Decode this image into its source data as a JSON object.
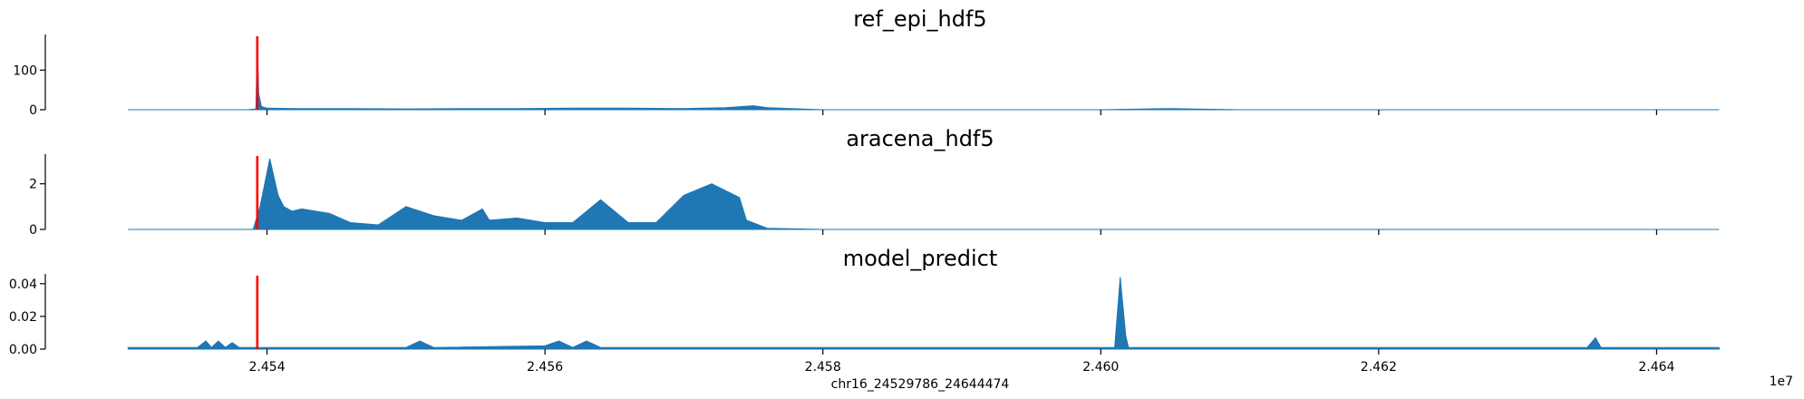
{
  "chart_data": [
    {
      "type": "area",
      "title": "ref_epi_hdf5",
      "color": "#1f77b4",
      "marker_color": "#ff0000",
      "marker_x": 2.45393,
      "xlim": [
        2.4529786,
        2.4644474
      ],
      "ylim": [
        0,
        190
      ],
      "yticks": [
        0,
        100
      ],
      "ytick_labels": [
        "0",
        "100"
      ],
      "x_ticks_shown": false,
      "x": [
        2.453,
        2.45386,
        2.45392,
        2.45393,
        2.45394,
        2.45396,
        2.454,
        2.4542,
        2.4546,
        2.455,
        2.4554,
        2.4558,
        2.4562,
        2.4566,
        2.457,
        2.4573,
        2.4575,
        2.4576,
        2.458,
        2.46,
        2.4605,
        2.461,
        2.462,
        2.46445
      ],
      "values": [
        0,
        0,
        2,
        178,
        40,
        8,
        4,
        3,
        3,
        2,
        3,
        3,
        4,
        4,
        3,
        5,
        10,
        5,
        0,
        0,
        3,
        0,
        0,
        0
      ]
    },
    {
      "type": "area",
      "title": "aracena_hdf5",
      "color": "#1f77b4",
      "marker_color": "#ff0000",
      "marker_x": 2.45393,
      "xlim": [
        2.4529786,
        2.4644474
      ],
      "ylim": [
        0,
        3.3
      ],
      "yticks": [
        0,
        2
      ],
      "ytick_labels": [
        "0",
        "2"
      ],
      "x_ticks_shown": false,
      "x": [
        2.453,
        2.4539,
        2.45395,
        2.45402,
        2.45408,
        2.45412,
        2.45418,
        2.45425,
        2.45435,
        2.45445,
        2.4546,
        2.4548,
        2.455,
        2.4552,
        2.4554,
        2.45555,
        2.4556,
        2.4558,
        2.456,
        2.4562,
        2.4564,
        2.4566,
        2.4568,
        2.457,
        2.4572,
        2.4574,
        2.45745,
        2.4576,
        2.458,
        2.46445
      ],
      "values": [
        0,
        0,
        1.0,
        3.1,
        1.5,
        1.0,
        0.8,
        0.9,
        0.8,
        0.7,
        0.3,
        0.2,
        1.0,
        0.6,
        0.4,
        0.9,
        0.4,
        0.5,
        0.3,
        0.3,
        1.3,
        0.3,
        0.3,
        1.5,
        2.0,
        1.4,
        0.4,
        0.05,
        0,
        0
      ]
    },
    {
      "type": "area",
      "title": "model_predict",
      "color": "#1f77b4",
      "marker_color": "#ff0000",
      "marker_x": 2.45393,
      "xlim": [
        2.4529786,
        2.4644474
      ],
      "ylim": [
        0,
        0.046
      ],
      "yticks": [
        0,
        0.02,
        0.04
      ],
      "ytick_labels": [
        "0.00",
        "0.02",
        "0.04"
      ],
      "x_ticks_shown": true,
      "xticks": [
        2.454,
        2.456,
        2.458,
        2.46,
        2.462,
        2.464
      ],
      "xtick_labels": [
        "2.454",
        "2.456",
        "2.458",
        "2.460",
        "2.462",
        "2.464"
      ],
      "xlabel": "chr16_24529786_24644474",
      "x_offset_label": "1e7",
      "x": [
        2.453,
        2.4535,
        2.45356,
        2.4536,
        2.45365,
        2.4537,
        2.45375,
        2.4538,
        2.4539,
        2.455,
        2.4551,
        2.4552,
        2.456,
        2.4561,
        2.4562,
        2.4563,
        2.4564,
        2.457,
        2.4601,
        2.46014,
        2.46018,
        2.4602,
        2.4603,
        2.4635,
        2.46356,
        2.4636,
        2.46365,
        2.46445
      ],
      "values": [
        0.001,
        0.001,
        0.005,
        0.001,
        0.005,
        0.001,
        0.004,
        0.001,
        0.001,
        0.001,
        0.005,
        0.001,
        0.002,
        0.005,
        0.001,
        0.005,
        0.001,
        0.001,
        0.001,
        0.044,
        0.008,
        0.001,
        0.001,
        0.001,
        0.007,
        0.001,
        0.001,
        0.001
      ]
    }
  ]
}
